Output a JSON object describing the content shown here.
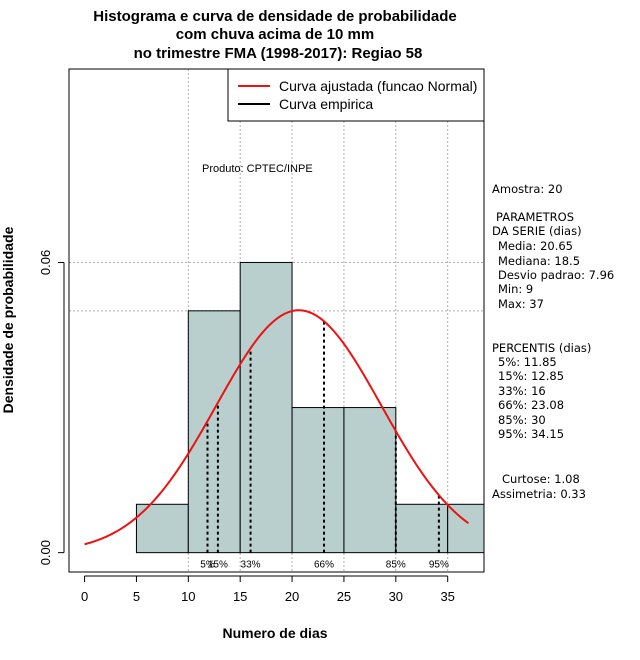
{
  "chart_data": {
    "type": "histogram",
    "title_lines": [
      "Histograma e curva de densidade de probabilidade",
      "com chuva acima de 10 mm",
      "no trimestre FMA (1998-2017): Regiao 58"
    ],
    "xlabel": "Numero de dias",
    "ylabel": "Densidade de probabilidade",
    "xlim": [
      -1.5,
      38.5
    ],
    "ylim": [
      -0.004,
      0.1
    ],
    "x_ticks": [
      0,
      5,
      10,
      15,
      20,
      25,
      30,
      35
    ],
    "y_ticks": [
      0.0,
      0.06
    ],
    "y_tick_labels": [
      "0.00",
      "0.06"
    ],
    "grid_x": [
      10,
      15,
      20,
      25,
      30,
      35
    ],
    "grid_y": [
      0.06,
      0.05,
      0.1
    ],
    "bars": [
      {
        "x0": 5,
        "x1": 10,
        "density": 0.01
      },
      {
        "x0": 10,
        "x1": 15,
        "density": 0.05
      },
      {
        "x0": 15,
        "x1": 20,
        "density": 0.06
      },
      {
        "x0": 20,
        "x1": 25,
        "density": 0.03
      },
      {
        "x0": 25,
        "x1": 30,
        "density": 0.03
      },
      {
        "x0": 30,
        "x1": 35,
        "density": 0.01
      },
      {
        "x0": 35,
        "x1": 38.5,
        "density": 0.01
      }
    ],
    "normal_curve": {
      "name": "Curva ajustada (funcao Normal)",
      "mean": 20.65,
      "sd": 7.96,
      "x_range": [
        0,
        37
      ],
      "color": "#ee1111"
    },
    "empirical_curve": {
      "name": "Curva empirica",
      "color": "#000000"
    },
    "percentile_lines": [
      {
        "label": "5%",
        "value": 11.85
      },
      {
        "label": "15%",
        "value": 12.85
      },
      {
        "label": "33%",
        "value": 16
      },
      {
        "label": "66%",
        "value": 23.08
      },
      {
        "label": "85%",
        "value": 30
      },
      {
        "label": "95%",
        "value": 34.15
      }
    ],
    "product_label": "Produto: CPTEC/INPE",
    "bar_color": "#b8cfce",
    "legend_position": "top-right"
  },
  "stats_panel": {
    "amostra": "Amostra: 20",
    "param_header1": "PARAMETROS",
    "param_header2": "DA SERIE (dias)",
    "media": "Media: 20.65",
    "mediana": "Mediana: 18.5",
    "desvio": "Desvio padrao: 7.96",
    "min": "Min: 9",
    "max": "Max: 37",
    "perc_header": "PERCENTIS (dias)",
    "p5": "5%: 11.85",
    "p15": "15%: 12.85",
    "p33": "33%: 16",
    "p66": "66%: 23.08",
    "p85": "85%: 30",
    "p95": "95%: 34.15",
    "curtose": "Curtose: 1.08",
    "assimetria": "Assimetria: 0.33"
  }
}
